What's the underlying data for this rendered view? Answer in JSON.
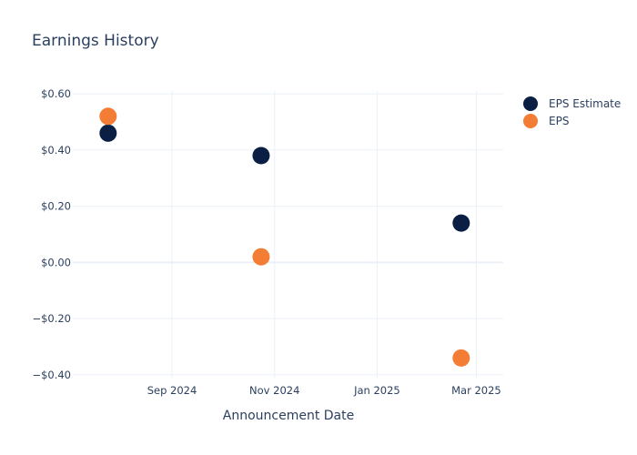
{
  "chart_data": {
    "type": "scatter",
    "title": "Earnings History",
    "xlabel": "Announcement Date",
    "ylabel": "",
    "x_range": [
      "2024-07-04",
      "2025-03-17"
    ],
    "ylim": [
      -0.41,
      0.61
    ],
    "x_ticks": [
      {
        "date": "2024-09-01",
        "label": "Sep 2024"
      },
      {
        "date": "2024-11-01",
        "label": "Nov 2024"
      },
      {
        "date": "2025-01-01",
        "label": "Jan 2025"
      },
      {
        "date": "2025-03-01",
        "label": "Mar 2025"
      }
    ],
    "y_ticks": [
      {
        "value": 0.6,
        "label": "$0.60"
      },
      {
        "value": 0.4,
        "label": "$0.40"
      },
      {
        "value": 0.2,
        "label": "$0.20"
      },
      {
        "value": 0.0,
        "label": "$0.00"
      },
      {
        "value": -0.2,
        "label": "−$0.20"
      },
      {
        "value": -0.4,
        "label": "−$0.40"
      }
    ],
    "grid": true,
    "legend_position": "top-right",
    "series": [
      {
        "name": "EPS Estimate",
        "color": "#0b1f45",
        "points": [
          {
            "x": "2024-07-25",
            "y": 0.46
          },
          {
            "x": "2024-10-24",
            "y": 0.38
          },
          {
            "x": "2025-02-20",
            "y": 0.14
          }
        ]
      },
      {
        "name": "EPS",
        "color": "#f47d35",
        "points": [
          {
            "x": "2024-07-25",
            "y": 0.52
          },
          {
            "x": "2024-10-24",
            "y": 0.02
          },
          {
            "x": "2025-02-20",
            "y": -0.34
          }
        ]
      }
    ]
  }
}
